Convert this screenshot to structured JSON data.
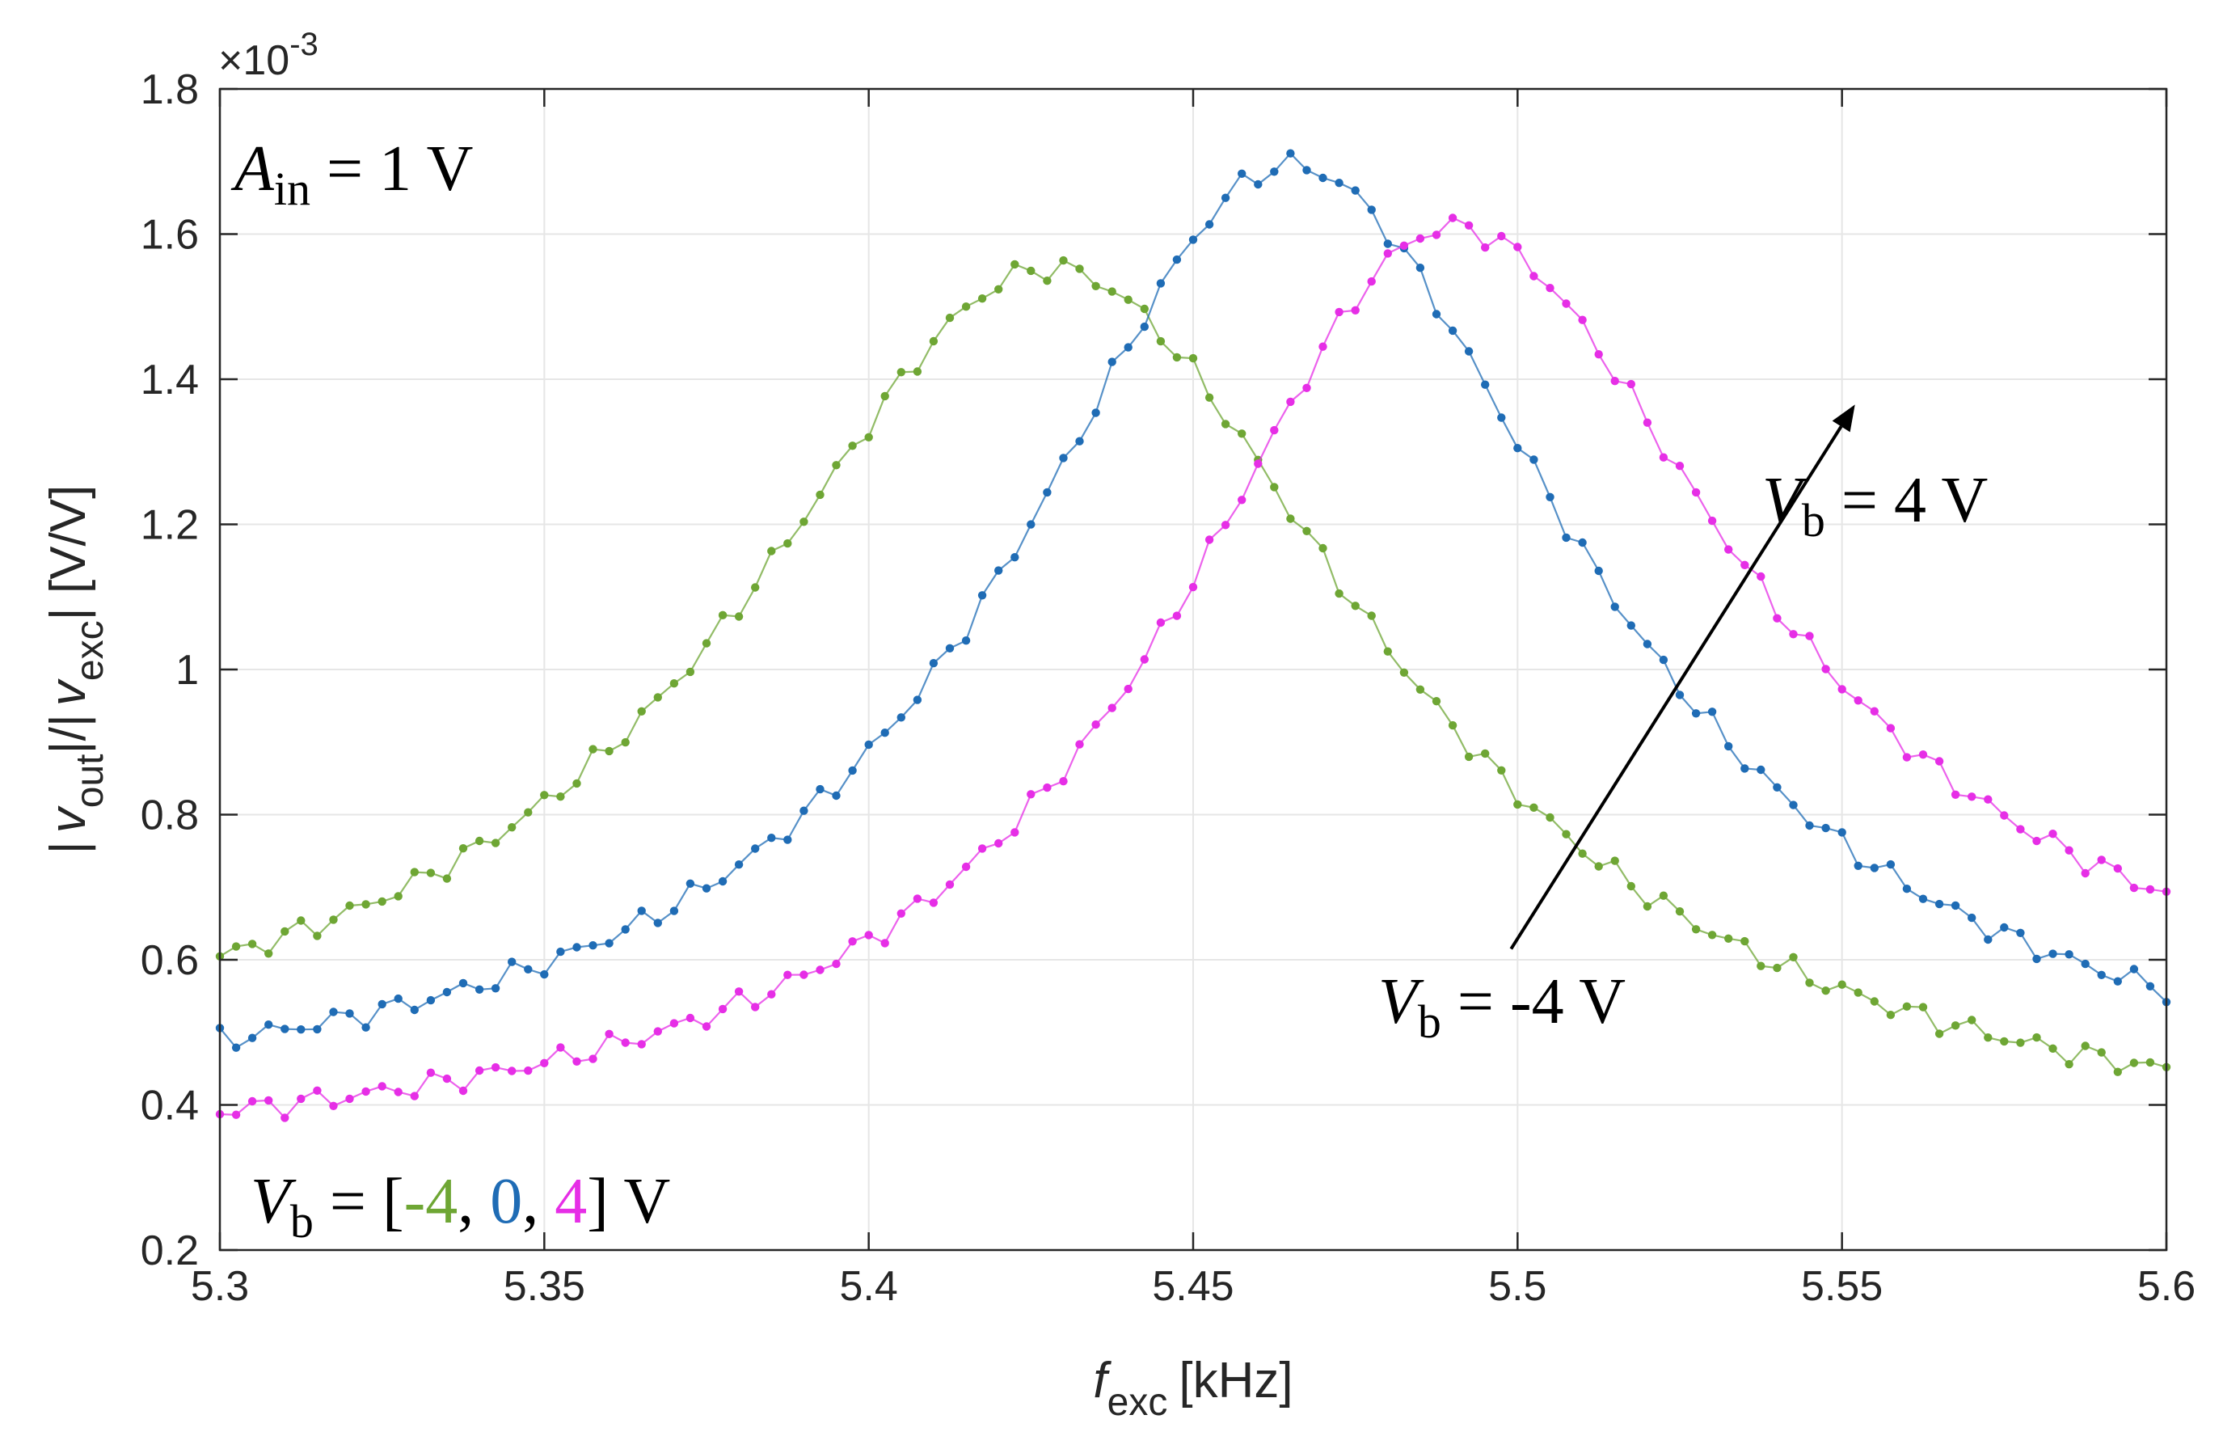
{
  "chart_data": {
    "type": "line",
    "xlabel": {
      "main": "f",
      "sub": "exc",
      "unit": "[kHz]"
    },
    "ylabel": {
      "bar1": "|",
      "v1": "v",
      "sub1": "out",
      "mid": "|/|",
      "v2": "v",
      "sub2": "exc",
      "end": "| [V/V]"
    },
    "xlim": [
      5.3,
      5.6
    ],
    "ylim": [
      0.2,
      1.8
    ],
    "y_exponent": "×10",
    "y_exponent_power": "-3",
    "grid": true,
    "x_ticks": [
      "5.3",
      "5.35",
      "5.4",
      "5.45",
      "5.5",
      "5.55",
      "5.6"
    ],
    "y_ticks": [
      "0.2",
      "0.4",
      "0.6",
      "0.8",
      "1",
      "1.2",
      "1.4",
      "1.6",
      "1.8"
    ],
    "annotations": {
      "ain": {
        "var": "A",
        "sub": "in",
        "text": " = 1 V"
      },
      "vb_high": {
        "var": "V",
        "sub": "b",
        "text": " = 4 V"
      },
      "vb_low": {
        "var": "V",
        "sub": "b",
        "text": " = -4 V"
      },
      "legend": {
        "var": "V",
        "sub": "b",
        "prefix": " = [",
        "v1": "-4",
        "sep1": ", ",
        "v2": "0",
        "sep2": ", ",
        "v3": "4",
        "suffix": "] V"
      }
    },
    "series": [
      {
        "name": "Vb = -4 V",
        "color": "#6ea634",
        "x_start": 5.3,
        "x_step": 0.0025,
        "peak_x": 5.428,
        "peak_y": 1.553,
        "sigma_left": 0.058,
        "sigma_right": 0.061,
        "floor_left": 0.41,
        "floor_right": 0.31
      },
      {
        "name": "Vb = 0 V",
        "color": "#1f6cb5",
        "x_start": 5.3,
        "x_step": 0.0025,
        "peak_x": 5.465,
        "peak_y": 1.695,
        "sigma_left": 0.052,
        "sigma_right": 0.055,
        "floor_left": 0.37,
        "floor_right": 0.37
      },
      {
        "name": "Vb = 4 V",
        "color": "#e62ee6",
        "x_start": 5.3,
        "x_step": 0.0025,
        "peak_x": 5.49,
        "peak_y": 1.61,
        "sigma_left": 0.052,
        "sigma_right": 0.054,
        "floor_left": 0.3,
        "floor_right": 0.47
      }
    ],
    "arrow": {
      "from": [
        5.499,
        0.615
      ],
      "to": [
        5.552,
        1.365
      ],
      "color": "#000000"
    }
  }
}
